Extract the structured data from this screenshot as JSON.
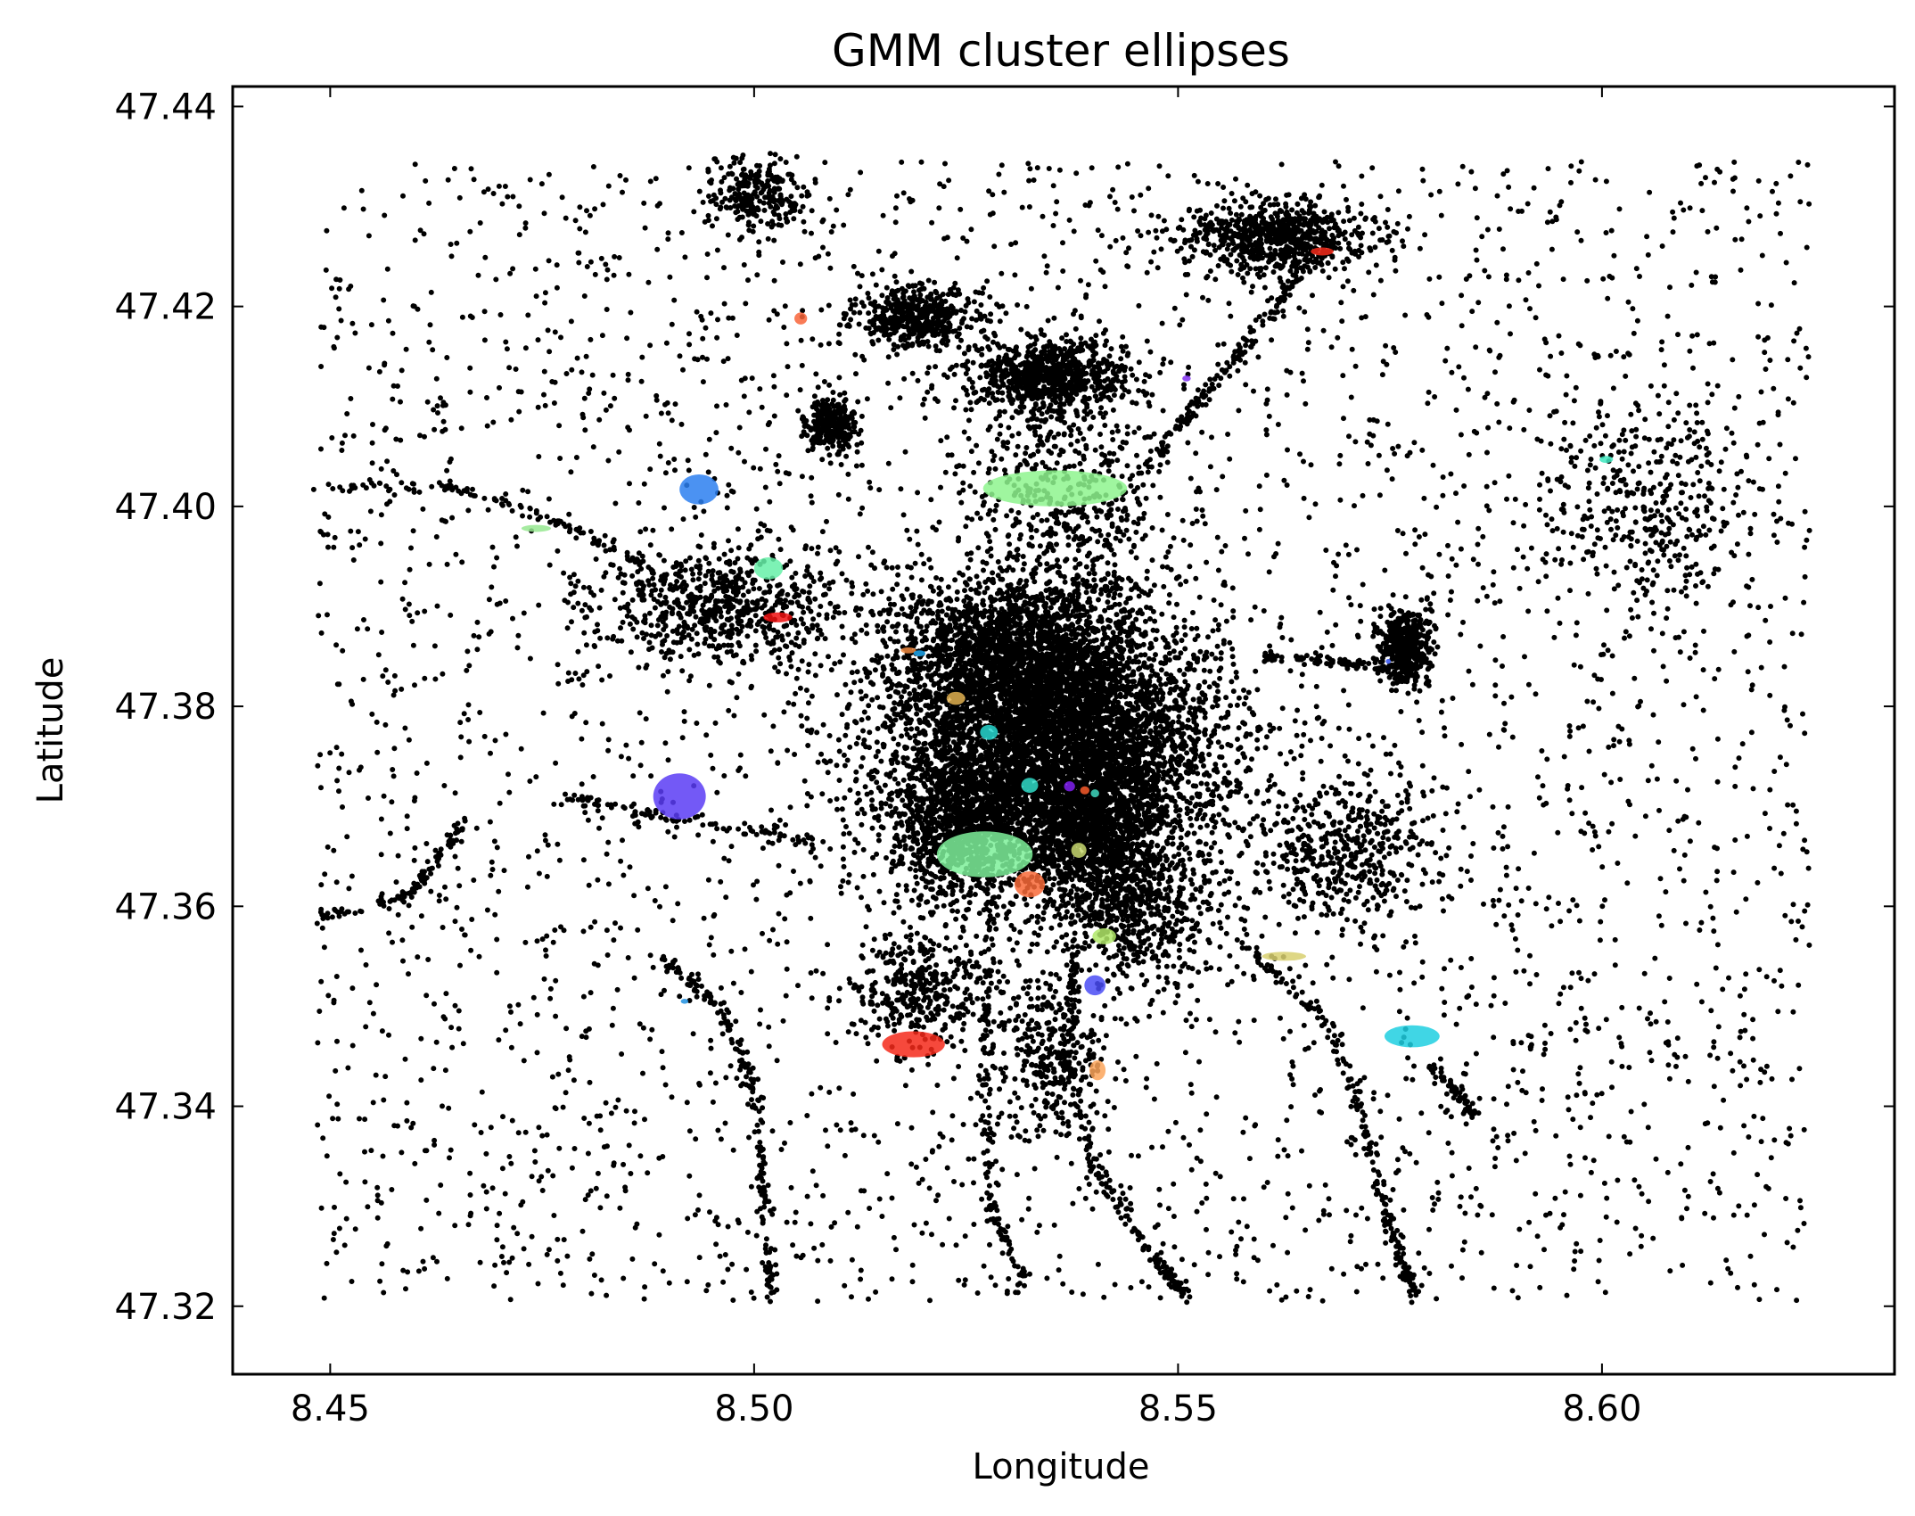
{
  "chart_data": {
    "type": "scatter",
    "title": "GMM cluster ellipses",
    "xlabel": "Longitude",
    "ylabel": "Latitude",
    "xlim": [
      8.4385,
      8.6345
    ],
    "ylim": [
      47.3132,
      47.442
    ],
    "xticks": [
      8.45,
      8.5,
      8.55,
      8.6
    ],
    "xtick_labels": [
      "8.45",
      "8.50",
      "8.55",
      "8.60"
    ],
    "yticks": [
      47.32,
      47.34,
      47.36,
      47.38,
      47.4,
      47.42,
      47.44
    ],
    "ytick_labels": [
      "47.32",
      "47.34",
      "47.36",
      "47.38",
      "47.40",
      "47.42",
      "47.44"
    ],
    "grid": false,
    "legend": "none",
    "point_color": "#000000",
    "density_clusters": [
      {
        "x": 8.536,
        "y": 47.376,
        "sx": 0.0095,
        "sy": 0.0065,
        "n": 5200
      },
      {
        "x": 8.53,
        "y": 47.385,
        "sx": 0.007,
        "sy": 0.004,
        "n": 1800
      },
      {
        "x": 8.525,
        "y": 47.368,
        "sx": 0.0045,
        "sy": 0.0035,
        "n": 900
      },
      {
        "x": 8.54,
        "y": 47.368,
        "sx": 0.004,
        "sy": 0.004,
        "n": 900
      },
      {
        "x": 8.535,
        "y": 47.413,
        "sx": 0.0045,
        "sy": 0.0018,
        "n": 800
      },
      {
        "x": 8.562,
        "y": 47.427,
        "sx": 0.0055,
        "sy": 0.0018,
        "n": 700
      },
      {
        "x": 8.519,
        "y": 47.419,
        "sx": 0.0035,
        "sy": 0.0015,
        "n": 450
      },
      {
        "x": 8.496,
        "y": 47.39,
        "sx": 0.0075,
        "sy": 0.0028,
        "n": 650
      },
      {
        "x": 8.577,
        "y": 47.386,
        "sx": 0.0015,
        "sy": 0.0018,
        "n": 450
      },
      {
        "x": 8.509,
        "y": 47.408,
        "sx": 0.0015,
        "sy": 0.0015,
        "n": 300
      },
      {
        "x": 8.5,
        "y": 47.431,
        "sx": 0.003,
        "sy": 0.002,
        "n": 250
      },
      {
        "x": 8.57,
        "y": 47.365,
        "sx": 0.006,
        "sy": 0.004,
        "n": 500
      },
      {
        "x": 8.545,
        "y": 47.36,
        "sx": 0.005,
        "sy": 0.004,
        "n": 600
      },
      {
        "x": 8.52,
        "y": 47.352,
        "sx": 0.004,
        "sy": 0.003,
        "n": 350
      },
      {
        "x": 8.605,
        "y": 47.4,
        "sx": 0.006,
        "sy": 0.005,
        "n": 350
      },
      {
        "x": 8.535,
        "y": 47.345,
        "sx": 0.003,
        "sy": 0.004,
        "n": 300
      },
      {
        "x": 8.537,
        "y": 47.4,
        "sx": 0.006,
        "sy": 0.006,
        "n": 500
      }
    ],
    "trails": [
      {
        "points": [
          [
            8.4485,
            47.402
          ],
          [
            8.465,
            47.402
          ],
          [
            8.478,
            47.398
          ],
          [
            8.488,
            47.394
          ]
        ],
        "n": 110
      },
      {
        "points": [
          [
            8.4485,
            47.359
          ],
          [
            8.459,
            47.361
          ],
          [
            8.462,
            47.364
          ],
          [
            8.466,
            47.369
          ]
        ],
        "n": 90
      },
      {
        "points": [
          [
            8.489,
            47.355
          ],
          [
            8.496,
            47.35
          ],
          [
            8.5,
            47.342
          ],
          [
            8.501,
            47.332
          ],
          [
            8.502,
            47.321
          ]
        ],
        "n": 180
      },
      {
        "points": [
          [
            8.538,
            47.356
          ],
          [
            8.537,
            47.345
          ],
          [
            8.54,
            47.334
          ],
          [
            8.547,
            47.325
          ],
          [
            8.551,
            47.321
          ]
        ],
        "n": 220
      },
      {
        "points": [
          [
            8.558,
            47.356
          ],
          [
            8.568,
            47.348
          ],
          [
            8.572,
            47.338
          ],
          [
            8.575,
            47.328
          ],
          [
            8.578,
            47.321
          ]
        ],
        "n": 200
      },
      {
        "points": [
          [
            8.528,
            47.362
          ],
          [
            8.527,
            47.345
          ],
          [
            8.528,
            47.33
          ],
          [
            8.532,
            47.322
          ]
        ],
        "n": 140
      },
      {
        "points": [
          [
            8.51,
            47.366
          ],
          [
            8.49,
            47.369
          ],
          [
            8.478,
            47.371
          ]
        ],
        "n": 90
      },
      {
        "points": [
          [
            8.56,
            47.385
          ],
          [
            8.575,
            47.384
          ]
        ],
        "n": 80
      },
      {
        "points": [
          [
            8.58,
            47.344
          ],
          [
            8.585,
            47.339
          ]
        ],
        "n": 60
      },
      {
        "points": [
          [
            8.545,
            47.403
          ],
          [
            8.555,
            47.413
          ],
          [
            8.566,
            47.425
          ]
        ],
        "n": 160
      }
    ],
    "background_points": {
      "n": 3800,
      "xmin": 8.4485,
      "xmax": 8.6245,
      "ymin": 47.3205,
      "ymax": 47.4345
    },
    "ellipses": [
      {
        "x": 8.5355,
        "y": 47.4018,
        "w": 0.017,
        "h": 0.0036,
        "angle": 0,
        "color": "#8ef58e"
      },
      {
        "x": 8.5272,
        "y": 47.3652,
        "w": 0.0113,
        "h": 0.0046,
        "angle": 0,
        "color": "#7ef09a"
      },
      {
        "x": 8.4912,
        "y": 47.371,
        "w": 0.0062,
        "h": 0.0046,
        "angle": 0,
        "color": "#5b3cf5"
      },
      {
        "x": 8.4935,
        "y": 47.4017,
        "w": 0.0046,
        "h": 0.003,
        "angle": 0,
        "color": "#2b7ff0"
      },
      {
        "x": 8.5188,
        "y": 47.3462,
        "w": 0.0074,
        "h": 0.0026,
        "angle": 0,
        "color": "#f5291a"
      },
      {
        "x": 8.5776,
        "y": 47.347,
        "w": 0.0065,
        "h": 0.0022,
        "angle": 0,
        "color": "#1ecfe0"
      },
      {
        "x": 8.5325,
        "y": 47.3622,
        "w": 0.0036,
        "h": 0.0026,
        "angle": 0,
        "color": "#f86a38"
      },
      {
        "x": 8.5017,
        "y": 47.3938,
        "w": 0.0034,
        "h": 0.0022,
        "angle": 0,
        "color": "#66f0a8"
      },
      {
        "x": 8.5625,
        "y": 47.355,
        "w": 0.0052,
        "h": 0.0009,
        "angle": 0,
        "color": "#d8d070"
      },
      {
        "x": 8.5413,
        "y": 47.357,
        "w": 0.0028,
        "h": 0.0016,
        "angle": 0,
        "color": "#b0e868"
      },
      {
        "x": 8.5402,
        "y": 47.3521,
        "w": 0.0025,
        "h": 0.002,
        "angle": 0,
        "color": "#4a4cf5"
      },
      {
        "x": 8.5405,
        "y": 47.3436,
        "w": 0.0019,
        "h": 0.002,
        "angle": 0,
        "color": "#fba55a"
      },
      {
        "x": 8.5028,
        "y": 47.3889,
        "w": 0.0034,
        "h": 0.001,
        "angle": 0,
        "color": "#f01010"
      },
      {
        "x": 8.5238,
        "y": 47.3808,
        "w": 0.0022,
        "h": 0.0013,
        "angle": 0,
        "color": "#e0b050"
      },
      {
        "x": 8.5277,
        "y": 47.3774,
        "w": 0.0021,
        "h": 0.0015,
        "angle": 0,
        "color": "#28d8d0"
      },
      {
        "x": 8.5325,
        "y": 47.3721,
        "w": 0.002,
        "h": 0.0015,
        "angle": 0,
        "color": "#30dcc8"
      },
      {
        "x": 8.5383,
        "y": 47.3656,
        "w": 0.0018,
        "h": 0.0015,
        "angle": 0,
        "color": "#c8d870"
      },
      {
        "x": 8.5372,
        "y": 47.372,
        "w": 0.0013,
        "h": 0.001,
        "angle": 0,
        "color": "#8020f0"
      },
      {
        "x": 8.539,
        "y": 47.3716,
        "w": 0.0011,
        "h": 0.0008,
        "angle": 0,
        "color": "#f85a2a"
      },
      {
        "x": 8.5402,
        "y": 47.3713,
        "w": 0.001,
        "h": 0.0008,
        "angle": 0,
        "color": "#40d8c0"
      },
      {
        "x": 8.5182,
        "y": 47.3856,
        "w": 0.0018,
        "h": 0.0006,
        "angle": 0,
        "color": "#f08a40"
      },
      {
        "x": 8.5195,
        "y": 47.3853,
        "w": 0.0014,
        "h": 0.0006,
        "angle": 0,
        "color": "#1ea8f0"
      },
      {
        "x": 8.5055,
        "y": 47.4188,
        "w": 0.0015,
        "h": 0.0012,
        "angle": 0,
        "color": "#f86438"
      },
      {
        "x": 8.567,
        "y": 47.4255,
        "w": 0.0027,
        "h": 0.0008,
        "angle": 0,
        "color": "#f52a1a"
      },
      {
        "x": 8.4743,
        "y": 47.3978,
        "w": 0.0035,
        "h": 0.0007,
        "angle": 0,
        "color": "#96e890"
      },
      {
        "x": 8.6005,
        "y": 47.4047,
        "w": 0.0016,
        "h": 0.0007,
        "angle": 0,
        "color": "#40e8c0"
      },
      {
        "x": 8.551,
        "y": 47.4128,
        "w": 0.001,
        "h": 0.0006,
        "angle": 0,
        "color": "#8030f0"
      },
      {
        "x": 8.5748,
        "y": 47.3845,
        "w": 0.0006,
        "h": 0.0005,
        "angle": 0,
        "color": "#3050f0"
      },
      {
        "x": 8.4918,
        "y": 47.3505,
        "w": 0.0009,
        "h": 0.0005,
        "angle": 0,
        "color": "#2090e0"
      }
    ]
  }
}
